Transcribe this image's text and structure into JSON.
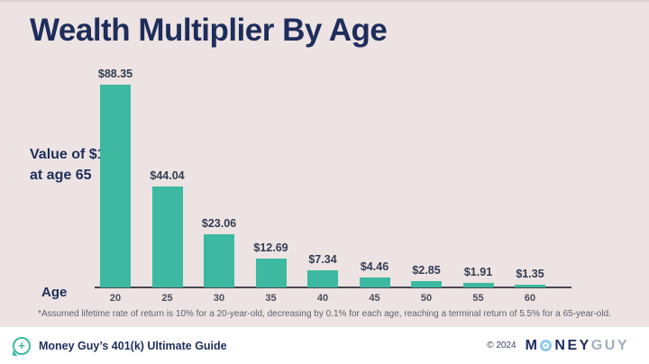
{
  "title": "Wealth Multiplier By Age",
  "annotation": {
    "line1": "Value of $1",
    "line2": "at age 65"
  },
  "age_axis_label": "Age",
  "footnote": "*Assumed lifetime rate of return is 10% for a 20-year-old, decreasing by 0.1% for each age, reaching a terminal return of 5.5% for a 65-year-old.",
  "chart_data": {
    "type": "bar",
    "title": "Wealth Multiplier By Age",
    "categories": [
      "20",
      "25",
      "30",
      "35",
      "40",
      "45",
      "50",
      "55",
      "60"
    ],
    "values": [
      88.35,
      44.04,
      23.06,
      12.69,
      7.34,
      4.46,
      2.85,
      1.91,
      1.35
    ],
    "bar_labels": [
      "$88.35",
      "$44.04",
      "$23.06",
      "$12.69",
      "$7.34",
      "$4.46",
      "$2.85",
      "$1.91",
      "$1.35"
    ],
    "xlabel": "Age",
    "ylabel": "Value of $1 at age 65",
    "ylim": [
      0,
      92
    ],
    "grid": false,
    "legend": "none",
    "bar_color": "#3cb9a0"
  },
  "footer": {
    "left_label": "Money Guy’s 401(k) Ultimate Guide",
    "copyright": "© 2024",
    "logo": {
      "m": "M",
      "ney": "NEY",
      "guy": "GUY"
    },
    "plus_icon_glyph": "+"
  },
  "colors": {
    "background": "#ece3e2",
    "bar": "#3cb9a0",
    "navy": "#1e2d5b",
    "axis": "#47474f",
    "footnote_text": "#5f5f72",
    "logo_o_blue": "#8ec9e8",
    "logo_guy_gray": "#a0aebf"
  }
}
